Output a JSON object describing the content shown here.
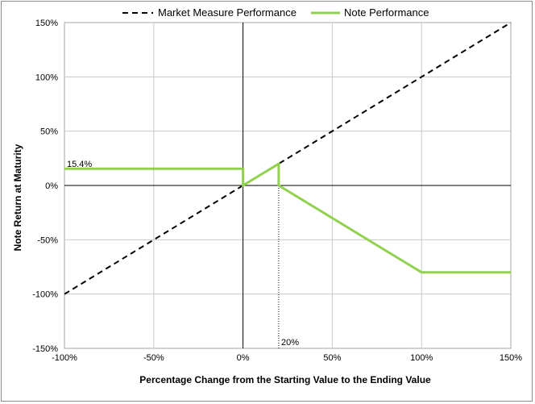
{
  "chart_data": {
    "type": "line",
    "title": "",
    "xlabel": "Percentage Change from the Starting Value to the Ending Value",
    "ylabel": "Note Return at Maturity",
    "xlim": [
      -100,
      150
    ],
    "ylim": [
      -150,
      150
    ],
    "x_ticks": [
      -100,
      -50,
      0,
      50,
      100,
      150
    ],
    "y_ticks": [
      -150,
      -100,
      -50,
      0,
      50,
      100,
      150
    ],
    "x_tick_labels": [
      "-100%",
      "-50%",
      "0%",
      "50%",
      "100%",
      "150%"
    ],
    "y_tick_labels": [
      "-150%",
      "-100%",
      "-50%",
      "0%",
      "50%",
      "100%",
      "150%"
    ],
    "grid": true,
    "legend_position": "top",
    "series": [
      {
        "name": "Market Measure Performance",
        "style": "dashed",
        "color": "#000000",
        "points": [
          [
            -100,
            -100
          ],
          [
            150,
            150
          ]
        ]
      },
      {
        "name": "Note Performance",
        "style": "solid",
        "color": "#92d050",
        "points": [
          [
            -100,
            15.4
          ],
          [
            0,
            15.4
          ],
          [
            0,
            0
          ],
          [
            20,
            20
          ],
          [
            20,
            0
          ],
          [
            100,
            -80
          ],
          [
            150,
            -80
          ]
        ]
      }
    ],
    "annotations": [
      {
        "text": "15.4%",
        "x": -100,
        "y": 15.4
      },
      {
        "text": "20%",
        "x": 20,
        "y": -150
      }
    ],
    "reference_lines": [
      {
        "axis": "x",
        "value": 20,
        "from": -150,
        "to": 0,
        "style": "dotted"
      }
    ]
  }
}
